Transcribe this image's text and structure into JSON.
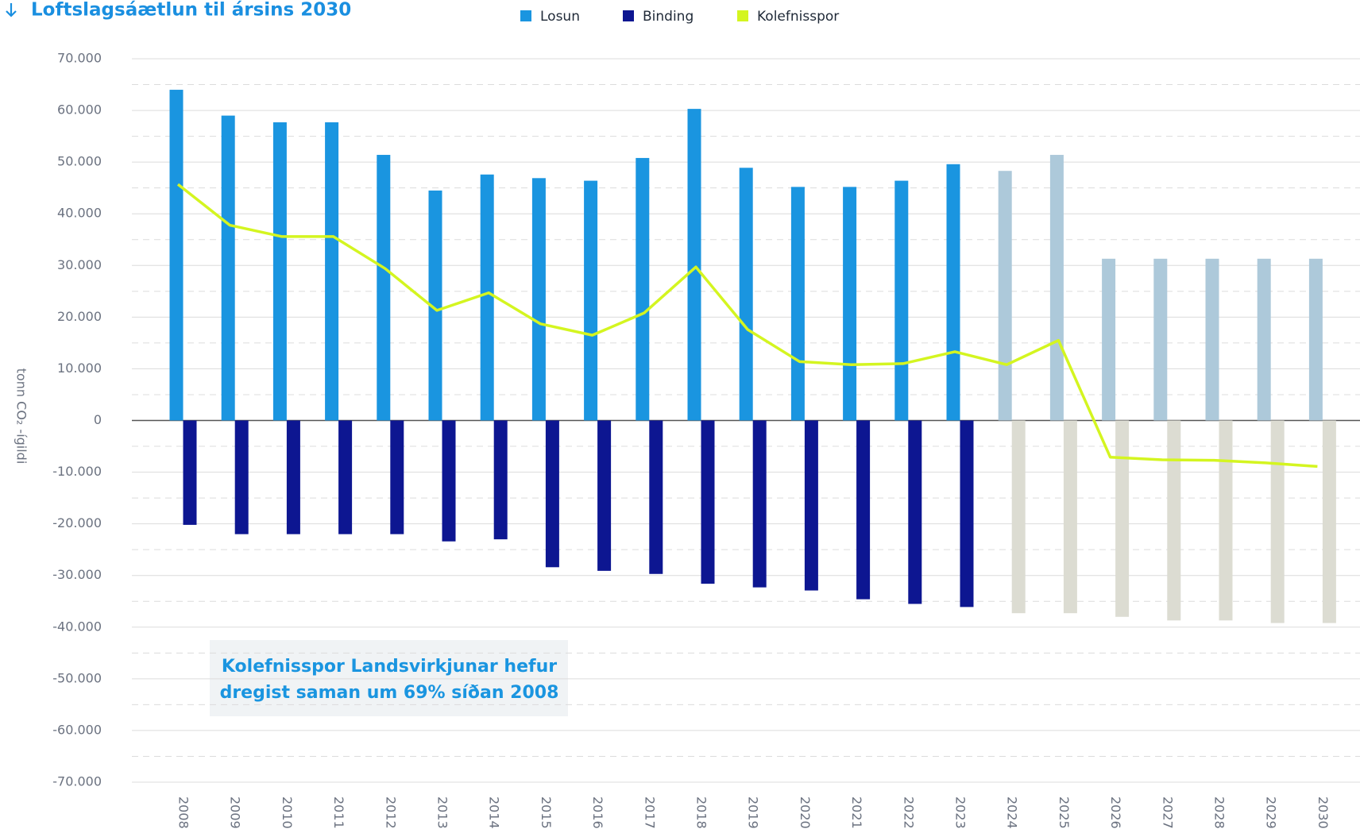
{
  "chart_data": {
    "type": "bar_line",
    "title": "Loftslagsáætlun til ársins 2030",
    "y_label": "tonn CO₂ -ígildi",
    "annotation": [
      "Kolefnisspor Landsvirkjunar hefur",
      "dregist saman um 69% síðan 2008"
    ],
    "categories": [
      "2008",
      "2009",
      "2010",
      "2011",
      "2012",
      "2013",
      "2014",
      "2015",
      "2016",
      "2017",
      "2018",
      "2019",
      "2020",
      "2021",
      "2022",
      "2023",
      "2024",
      "2025",
      "2026",
      "2027",
      "2028",
      "2029",
      "2030"
    ],
    "series": [
      {
        "name": "Losun",
        "kind": "bar",
        "color": "#1a95e0",
        "colors": [
          "#1a95e0",
          "#1a95e0",
          "#1a95e0",
          "#1a95e0",
          "#1a95e0",
          "#1a95e0",
          "#1a95e0",
          "#1a95e0",
          "#1a95e0",
          "#1a95e0",
          "#1a95e0",
          "#1a95e0",
          "#1a95e0",
          "#1a95e0",
          "#1a95e0",
          "#1a95e0",
          "#adc9da",
          "#adc9da",
          "#adc9da",
          "#adc9da",
          "#adc9da",
          "#adc9da",
          "#adc9da"
        ],
        "values": [
          64000,
          59000,
          57700,
          57700,
          51400,
          44500,
          47600,
          46900,
          46400,
          50800,
          60300,
          48900,
          45200,
          45200,
          46400,
          49600,
          48300,
          51400,
          31300,
          31300,
          31300,
          31300,
          31300
        ]
      },
      {
        "name": "Binding",
        "kind": "bar",
        "color": "#0d1691",
        "colors": [
          "#0d1691",
          "#0d1691",
          "#0d1691",
          "#0d1691",
          "#0d1691",
          "#0d1691",
          "#0d1691",
          "#0d1691",
          "#0d1691",
          "#0d1691",
          "#0d1691",
          "#0d1691",
          "#0d1691",
          "#0d1691",
          "#0d1691",
          "#0d1691",
          "#dcdcd2",
          "#dcdcd2",
          "#dcdcd2",
          "#dcdcd2",
          "#dcdcd2",
          "#dcdcd2",
          "#dcdcd2"
        ],
        "values": [
          -20200,
          -22000,
          -22000,
          -22000,
          -22000,
          -23400,
          -23000,
          -28400,
          -29100,
          -29700,
          -31600,
          -32300,
          -32900,
          -34600,
          -35500,
          -36100,
          -37300,
          -37300,
          -38000,
          -38700,
          -38700,
          -39200,
          -39200
        ]
      },
      {
        "name": "Kolefnisspor",
        "kind": "line",
        "color": "#d4f520",
        "values": [
          45700,
          37800,
          35600,
          35600,
          29400,
          21300,
          24700,
          18700,
          16500,
          20800,
          29700,
          17600,
          11400,
          10800,
          11000,
          13300,
          10800,
          15500,
          -7100,
          -7600,
          -7700,
          -8200,
          -8900
        ]
      }
    ],
    "ylim": [
      -70000,
      70000
    ],
    "yticks": [
      {
        "value": -70000,
        "label": "-70.000"
      },
      {
        "value": -60000,
        "label": "-60.000"
      },
      {
        "value": -50000,
        "label": "-50.000"
      },
      {
        "value": -40000,
        "label": "-40.000"
      },
      {
        "value": -30000,
        "label": "-30.000"
      },
      {
        "value": -20000,
        "label": "-20.000"
      },
      {
        "value": -10000,
        "label": "-10.000"
      },
      0,
      {
        "value": 10000,
        "label": "10.000"
      },
      {
        "value": 20000,
        "label": "20.000"
      },
      {
        "value": 30000,
        "label": "30.000"
      },
      {
        "value": 40000,
        "label": "40.000"
      },
      {
        "value": 50000,
        "label": "50.000"
      },
      {
        "value": 60000,
        "label": "60.000"
      },
      {
        "value": 70000,
        "label": "70.000"
      }
    ],
    "grid": true
  }
}
